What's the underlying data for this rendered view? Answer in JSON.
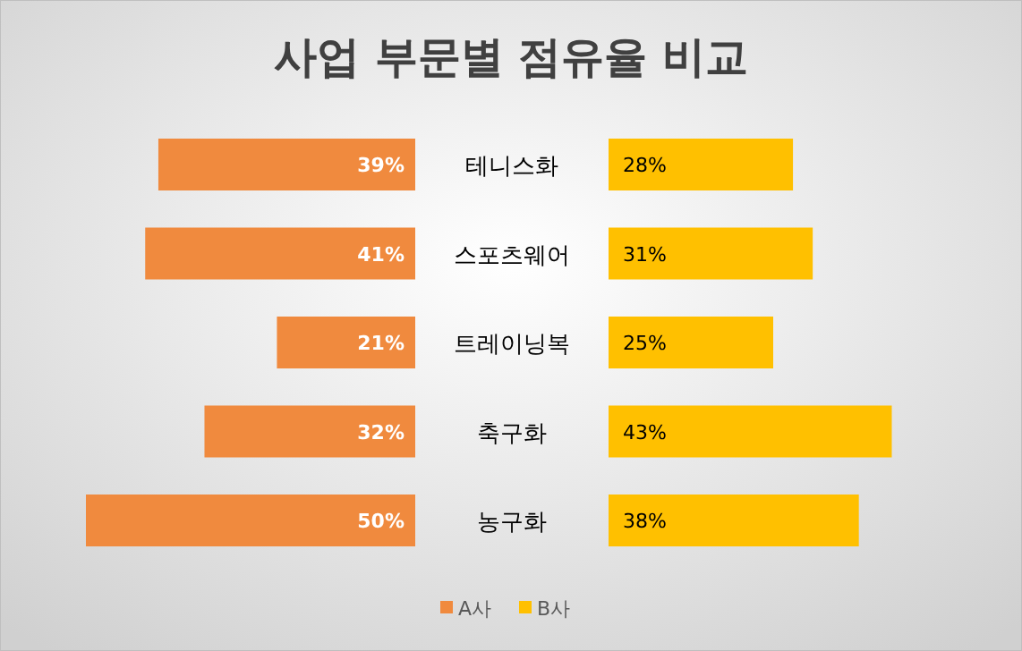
{
  "chart_data": [
    {
      "type": "bar",
      "orientation": "horizontal",
      "title": "사업 부문별 점유율 비교",
      "categories": [
        "테니스화",
        "스포츠웨어",
        "트레이닝복",
        "축구화",
        "농구화"
      ],
      "series": [
        {
          "name": "A사",
          "color": "#f08a3e",
          "values": [
            39,
            41,
            21,
            32,
            50
          ],
          "value_labels": [
            "39%",
            "41%",
            "21%",
            "32%",
            "50%"
          ]
        }
      ],
      "legend": "bottom"
    },
    {
      "type": "bar",
      "orientation": "horizontal",
      "categories": [
        null,
        null,
        null,
        null,
        null
      ],
      "series": [
        {
          "name": "B사",
          "color": "#ffc000",
          "values": [
            28,
            31,
            25,
            43,
            38
          ],
          "value_labels": [
            "28%",
            "31%",
            "25%",
            "43%",
            "38%"
          ]
        }
      ],
      "legend": "bottom"
    }
  ]
}
